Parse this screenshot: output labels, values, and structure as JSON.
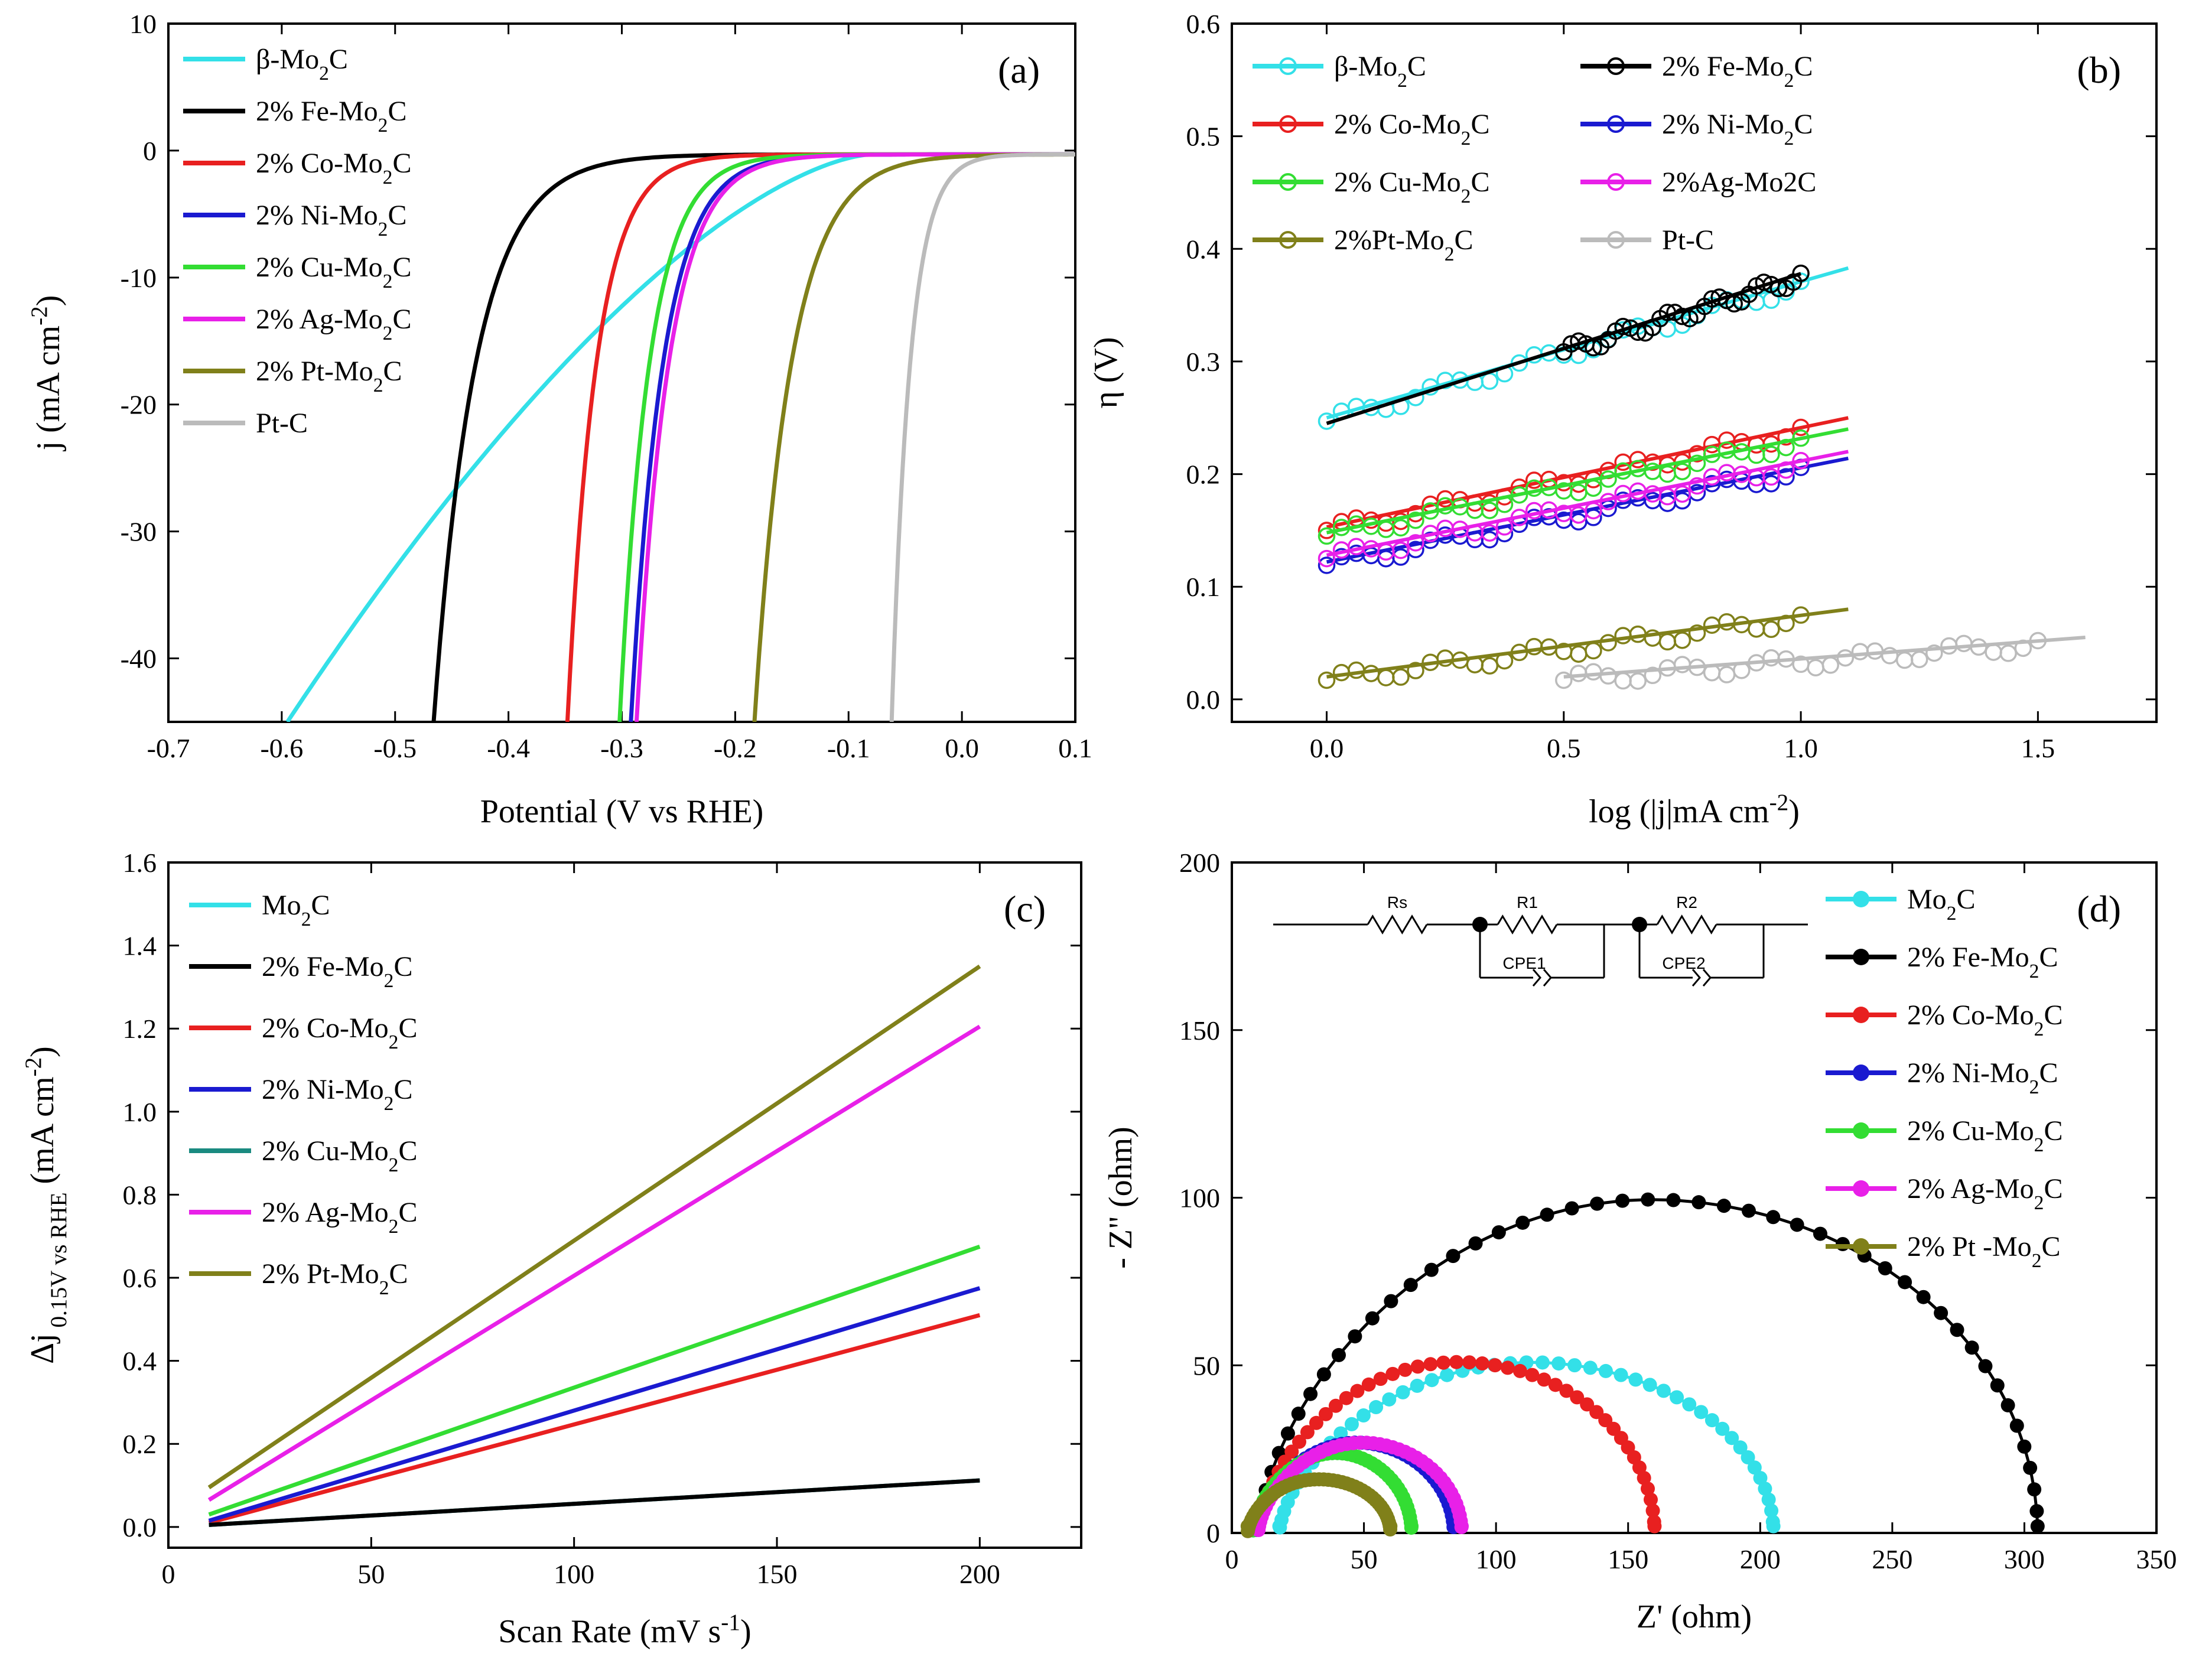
{
  "chart_data": [
    {
      "panel_label": "(a)",
      "type": "line",
      "xlabel": "Potential (V vs RHE)",
      "ylabel_parts": [
        "j (mA cm",
        "-2",
        ")"
      ],
      "xlim": [
        -0.7,
        0.1
      ],
      "ylim": [
        -45,
        10
      ],
      "xticks": [
        "-0.7",
        "-0.6",
        "-0.5",
        "-0.4",
        "-0.3",
        "-0.2",
        "-0.1",
        "0.0",
        "0.1"
      ],
      "yticks": [
        "-40",
        "-30",
        "-20",
        "-10",
        "0",
        "10"
      ],
      "legend_position": "top-left",
      "series": [
        {
          "legend": [
            "β-Mo",
            "2",
            "C"
          ],
          "color": "#33e0e8",
          "x_at_minus45": -0.595,
          "onset": -0.08,
          "shape": "convex"
        },
        {
          "legend": [
            "2% Fe-Mo",
            "2",
            "C"
          ],
          "color": "#000000",
          "x_at_minus45": -0.466,
          "onset": -0.28,
          "shape": "exp"
        },
        {
          "legend": [
            "2% Co-Mo",
            "2",
            "C"
          ],
          "color": "#e82020",
          "x_at_minus45": -0.348,
          "onset": -0.22,
          "shape": "exp"
        },
        {
          "legend": [
            "2% Ni-Mo",
            "2",
            "C"
          ],
          "color": "#1a1ad0",
          "x_at_minus45": -0.292,
          "onset": -0.15,
          "shape": "exp"
        },
        {
          "legend": [
            "2% Cu-Mo",
            "2",
            "C"
          ],
          "color": "#33dd33",
          "x_at_minus45": -0.302,
          "onset": -0.17,
          "shape": "exp"
        },
        {
          "legend": [
            "2% Ag-Mo",
            "2",
            "C"
          ],
          "color": "#e820e8",
          "x_at_minus45": -0.287,
          "onset": -0.145,
          "shape": "exp"
        },
        {
          "legend": [
            "2% Pt-Mo",
            "2",
            "C"
          ],
          "color": "#80801a",
          "x_at_minus45": -0.183,
          "onset": -0.02,
          "shape": "exp"
        },
        {
          "legend": [
            "Pt-C",
            "",
            ""
          ],
          "color": "#bbbbbb",
          "x_at_minus45": -0.062,
          "onset": 0.02,
          "shape": "exp"
        }
      ]
    },
    {
      "panel_label": "(b)",
      "type": "line",
      "xlabel_parts": [
        "log (",
        "|j|",
        "mA cm",
        "-2",
        ")"
      ],
      "ylabel": "η (V)",
      "xlim": [
        -0.2,
        1.75
      ],
      "ylim": [
        -0.02,
        0.6
      ],
      "xticks": [
        "0.0",
        "0.5",
        "1.0",
        "1.5"
      ],
      "xtick_values": [
        0,
        0.5,
        1.0,
        1.5
      ],
      "yticks": [
        "0.0",
        "0.1",
        "0.2",
        "0.3",
        "0.4",
        "0.5",
        "0.6"
      ],
      "legend_position": "top",
      "series": [
        {
          "legend": [
            "β-Mo",
            "2",
            "C"
          ],
          "color": "#33e0e8",
          "fit": [
            [
              0,
              0.25
            ],
            [
              1.1,
              0.383
            ]
          ],
          "points_x": [
            0,
            1.0
          ]
        },
        {
          "legend": [
            "2% Fe-Mo",
            "2",
            "C"
          ],
          "color": "#000000",
          "fit": [
            [
              0,
              0.245
            ],
            [
              1.0,
              0.378
            ]
          ],
          "points_x": [
            0.5,
            1.0
          ]
        },
        {
          "legend": [
            "2% Co-Mo",
            "2",
            "C"
          ],
          "color": "#e82020",
          "fit": [
            [
              0,
              0.153
            ],
            [
              1.1,
              0.25
            ]
          ],
          "points_x": [
            0,
            1.0
          ]
        },
        {
          "legend": [
            "2% Ni-Mo",
            "2",
            "C"
          ],
          "color": "#1a1ad0",
          "fit": [
            [
              0,
              0.122
            ],
            [
              1.1,
              0.214
            ]
          ],
          "points_x": [
            0,
            1.0
          ]
        },
        {
          "legend": [
            "2% Cu-Mo",
            "2",
            "C"
          ],
          "color": "#33dd33",
          "fit": [
            [
              0,
              0.148
            ],
            [
              1.1,
              0.24
            ]
          ],
          "points_x": [
            0,
            1.0
          ]
        },
        {
          "legend": [
            "2%Ag-Mo2C",
            "",
            ""
          ],
          "color": "#e820e8",
          "fit": [
            [
              0,
              0.128
            ],
            [
              1.1,
              0.22
            ]
          ],
          "points_x": [
            0,
            1.0
          ]
        },
        {
          "legend": [
            "2%Pt-Mo",
            "2",
            "C"
          ],
          "color": "#80801a",
          "fit": [
            [
              0,
              0.02
            ],
            [
              1.1,
              0.08
            ]
          ],
          "points_x": [
            0,
            1.0
          ]
        },
        {
          "legend": [
            "Pt-C",
            "",
            ""
          ],
          "color": "#bbbbbb",
          "fit": [
            [
              0.5,
              0.02
            ],
            [
              1.6,
              0.055
            ]
          ],
          "points_x": [
            0.5,
            1.5
          ]
        }
      ]
    },
    {
      "panel_label": "(c)",
      "type": "line",
      "xlabel_parts": [
        "Scan Rate (mV s",
        "-1",
        ")"
      ],
      "ylabel_parts": [
        "Δj",
        " 0.15V vs RHE",
        " (mA cm",
        "-2",
        ")"
      ],
      "xlim": [
        0,
        225
      ],
      "ylim": [
        -0.05,
        1.6
      ],
      "xticks": [
        "0",
        "50",
        "100",
        "150",
        "200"
      ],
      "xtick_values": [
        0,
        50,
        100,
        150,
        200
      ],
      "yticks": [
        "0.0",
        "0.2",
        "0.4",
        "0.6",
        "0.8",
        "1.0",
        "1.2",
        "1.4",
        "1.6"
      ],
      "legend_position": "top-left",
      "series": [
        {
          "legend": [
            "Mo",
            "2",
            "C"
          ],
          "color": "#33e0e8",
          "x": [
            10,
            200
          ],
          "y": [
            0.005,
            0.112
          ]
        },
        {
          "legend": [
            "2% Fe-Mo",
            "2",
            "C"
          ],
          "color": "#000000",
          "x": [
            10,
            200
          ],
          "y": [
            0.005,
            0.112
          ]
        },
        {
          "legend": [
            "2% Co-Mo",
            "2",
            "C"
          ],
          "color": "#e82020",
          "x": [
            10,
            200
          ],
          "y": [
            0.01,
            0.51
          ]
        },
        {
          "legend": [
            "2% Ni-Mo",
            "2",
            "C"
          ],
          "color": "#1a1ad0",
          "x": [
            10,
            200
          ],
          "y": [
            0.015,
            0.575
          ]
        },
        {
          "legend": [
            "2% Cu-Mo",
            "2",
            "C"
          ],
          "color": "#1a8a80",
          "x": [
            10,
            200
          ],
          "y": [
            0.005,
            0.112
          ]
        },
        {
          "legend": [
            "2% Ag-Mo",
            "2",
            "C"
          ],
          "color": "#e820e8",
          "x": [
            10,
            200
          ],
          "y": [
            0.065,
            1.205
          ]
        },
        {
          "legend": [
            "2% Pt-Mo",
            "2",
            "C"
          ],
          "color": "#80801a",
          "x": [
            10,
            200
          ],
          "y": [
            0.095,
            1.35
          ]
        },
        {
          "legend": [
            "",
            "",
            ""
          ],
          "color": "#33dd33",
          "x": [
            10,
            200
          ],
          "y": [
            0.03,
            0.675
          ]
        }
      ]
    },
    {
      "panel_label": "(d)",
      "type": "scatter",
      "xlabel": "Z' (ohm)",
      "ylabel": "- Z\" (ohm)",
      "xlim": [
        0,
        350
      ],
      "ylim": [
        0,
        200
      ],
      "xticks": [
        "0",
        "50",
        "100",
        "150",
        "200",
        "250",
        "300",
        "350"
      ],
      "xtick_values": [
        0,
        50,
        100,
        150,
        200,
        250,
        300,
        350
      ],
      "yticks": [
        "0",
        "50",
        "100",
        "150",
        "200"
      ],
      "legend_position": "top-right",
      "circuit_labels": [
        "Rs",
        "R1",
        "R2",
        "CPE1",
        "CPE2"
      ],
      "series": [
        {
          "legend": [
            "Mo",
            "2",
            "C"
          ],
          "color": "#33e0e8",
          "x_start": 18,
          "x_end": 205,
          "peak": 51,
          "peak_frac": 0.55
        },
        {
          "legend": [
            "2% Fe-Mo",
            "2",
            "C"
          ],
          "color": "#000000",
          "x_start": 10,
          "x_end": 305,
          "peak": 99.5,
          "peak_frac": 0.52
        },
        {
          "legend": [
            "2% Co-Mo",
            "2",
            "C"
          ],
          "color": "#e82020",
          "x_start": 10,
          "x_end": 160,
          "peak": 51,
          "peak_frac": 0.52
        },
        {
          "legend": [
            "2% Ni-Mo",
            "2",
            "C"
          ],
          "color": "#1a1ad0",
          "x_start": 9,
          "x_end": 84,
          "peak": 27,
          "peak_frac": 0.55
        },
        {
          "legend": [
            "2% Cu-Mo",
            "2",
            "C"
          ],
          "color": "#33dd33",
          "x_start": 8,
          "x_end": 68,
          "peak": 24,
          "peak_frac": 0.6
        },
        {
          "legend": [
            "2% Ag-Mo",
            "2",
            "C"
          ],
          "color": "#e820e8",
          "x_start": 10,
          "x_end": 87,
          "peak": 27,
          "peak_frac": 0.55
        },
        {
          "legend": [
            "2% Pt -Mo",
            "2",
            "C"
          ],
          "color": "#80801a",
          "x_start": 6,
          "x_end": 60,
          "peak": 16,
          "peak_frac": 0.45
        }
      ]
    }
  ]
}
